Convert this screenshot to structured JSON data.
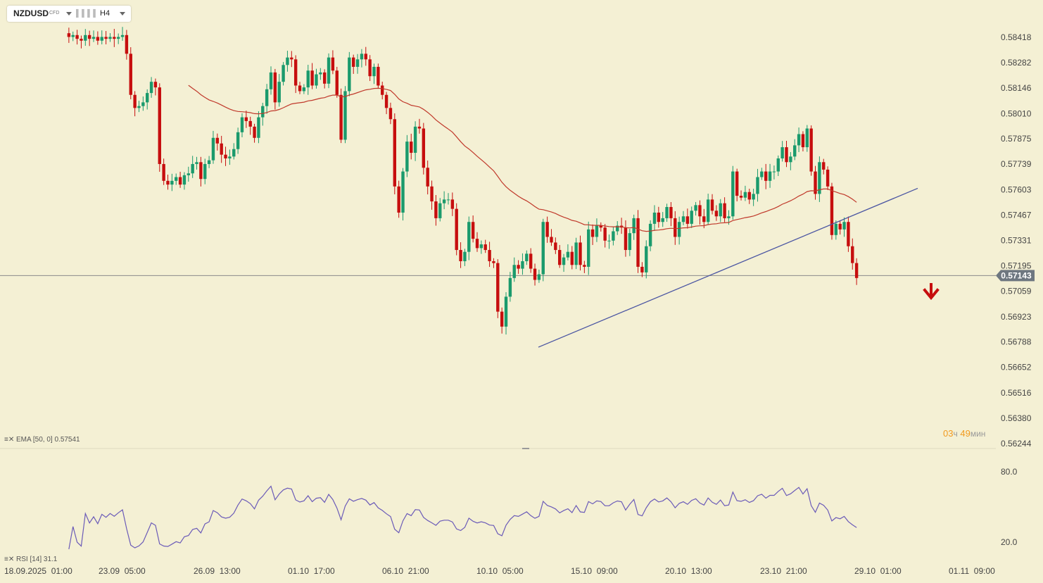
{
  "toolbar": {
    "symbol": "NZDUSD",
    "instrument_type": "CFD",
    "timeframe": "H4",
    "chart_type_icon": "bar-chart-icon"
  },
  "indicators": {
    "ema_label": "EMA [50, 0] 0.57541",
    "rsi_label": "RSI [14] 31.1"
  },
  "timer": {
    "hours": "03",
    "hours_unit": "ч",
    "minutes": "49",
    "minutes_unit": "мин"
  },
  "colors": {
    "background": "#f4f0d4",
    "bull": "#1a9a6c",
    "bear": "#c60e0e",
    "ema": "#c0392b",
    "trendline": "#4a55a2",
    "rsi": "#6b5bb8",
    "price_line": "#8a8a8a",
    "price_tag": "#6e7780"
  },
  "chart_data": {
    "type": "candlestick",
    "symbol": "NZDUSD",
    "timeframe": "H4",
    "y_ticks": [
      "0.58418",
      "0.58282",
      "0.58146",
      "0.58010",
      "0.57875",
      "0.57739",
      "0.57603",
      "0.57467",
      "0.57331",
      "0.57195",
      "0.57059",
      "0.56923",
      "0.56788",
      "0.56652",
      "0.56516",
      "0.56380",
      "0.56244"
    ],
    "y_range": [
      0.56244,
      0.58418
    ],
    "x_ticks": [
      "18.09.2025  01:00",
      "23.09  05:00",
      "26.09  13:00",
      "01.10  17:00",
      "06.10  21:00",
      "10.10  05:00",
      "15.10  09:00",
      "20.10  13:00",
      "23.10  21:00",
      "29.10  01:00",
      "01.11  09:00"
    ],
    "current_price": "0.57143",
    "close_series": [
      0.5844,
      0.5842,
      0.5843,
      0.5841,
      0.584,
      0.5843,
      0.5841,
      0.5842,
      0.584,
      0.5842,
      0.5841,
      0.5842,
      0.5841,
      0.5842,
      0.5843,
      0.5833,
      0.5811,
      0.5804,
      0.5805,
      0.5807,
      0.5812,
      0.5818,
      0.5815,
      0.5774,
      0.5765,
      0.5763,
      0.5765,
      0.5767,
      0.5763,
      0.5768,
      0.5769,
      0.5774,
      0.5775,
      0.5766,
      0.5774,
      0.5776,
      0.5788,
      0.5785,
      0.5779,
      0.5777,
      0.5778,
      0.5782,
      0.5791,
      0.5799,
      0.5797,
      0.5794,
      0.5788,
      0.5799,
      0.5805,
      0.5814,
      0.5823,
      0.5807,
      0.5818,
      0.5827,
      0.5831,
      0.583,
      0.5816,
      0.5813,
      0.5815,
      0.5824,
      0.5816,
      0.5822,
      0.5823,
      0.5817,
      0.5831,
      0.5824,
      0.5811,
      0.5787,
      0.5813,
      0.5831,
      0.5826,
      0.583,
      0.5833,
      0.583,
      0.5821,
      0.5826,
      0.5816,
      0.5811,
      0.5804,
      0.5798,
      0.5762,
      0.5748,
      0.577,
      0.5786,
      0.578,
      0.5794,
      0.5793,
      0.5772,
      0.5762,
      0.5754,
      0.5745,
      0.5753,
      0.5755,
      0.5755,
      0.575,
      0.5728,
      0.5722,
      0.5727,
      0.5743,
      0.5734,
      0.5729,
      0.5731,
      0.5728,
      0.5722,
      0.5721,
      0.5695,
      0.5687,
      0.5703,
      0.5713,
      0.572,
      0.5718,
      0.5722,
      0.5726,
      0.5718,
      0.5712,
      0.5715,
      0.5743,
      0.5735,
      0.5732,
      0.5728,
      0.572,
      0.5724,
      0.5727,
      0.572,
      0.5732,
      0.572,
      0.5719,
      0.5739,
      0.5735,
      0.5741,
      0.574,
      0.5733,
      0.5733,
      0.5738,
      0.5741,
      0.574,
      0.5728,
      0.5737,
      0.5745,
      0.5719,
      0.5716,
      0.573,
      0.5742,
      0.5748,
      0.5743,
      0.5745,
      0.5751,
      0.5745,
      0.5735,
      0.5743,
      0.5746,
      0.5742,
      0.5749,
      0.5752,
      0.5746,
      0.5743,
      0.5755,
      0.5749,
      0.5746,
      0.5753,
      0.5745,
      0.5746,
      0.577,
      0.5757,
      0.5756,
      0.5759,
      0.5755,
      0.5758,
      0.5767,
      0.577,
      0.5765,
      0.577,
      0.577,
      0.5777,
      0.5783,
      0.5775,
      0.5778,
      0.5784,
      0.579,
      0.5783,
      0.5793,
      0.577,
      0.5758,
      0.5775,
      0.5771,
      0.5762,
      0.5736,
      0.5742,
      0.5739,
      0.5743,
      0.573,
      0.5721,
      0.5713
    ],
    "ema_period": 50,
    "ema_value": "0.57541",
    "trendline": {
      "from": [
        "10.10  05:00",
        0.5676
      ],
      "to": [
        "29.10  01:00",
        0.5761
      ]
    },
    "signal": "sell-arrow",
    "rsi": {
      "period": 14,
      "value": 31.1,
      "levels": [
        "80.0",
        "20.0"
      ],
      "y_range": [
        20,
        80
      ]
    }
  }
}
